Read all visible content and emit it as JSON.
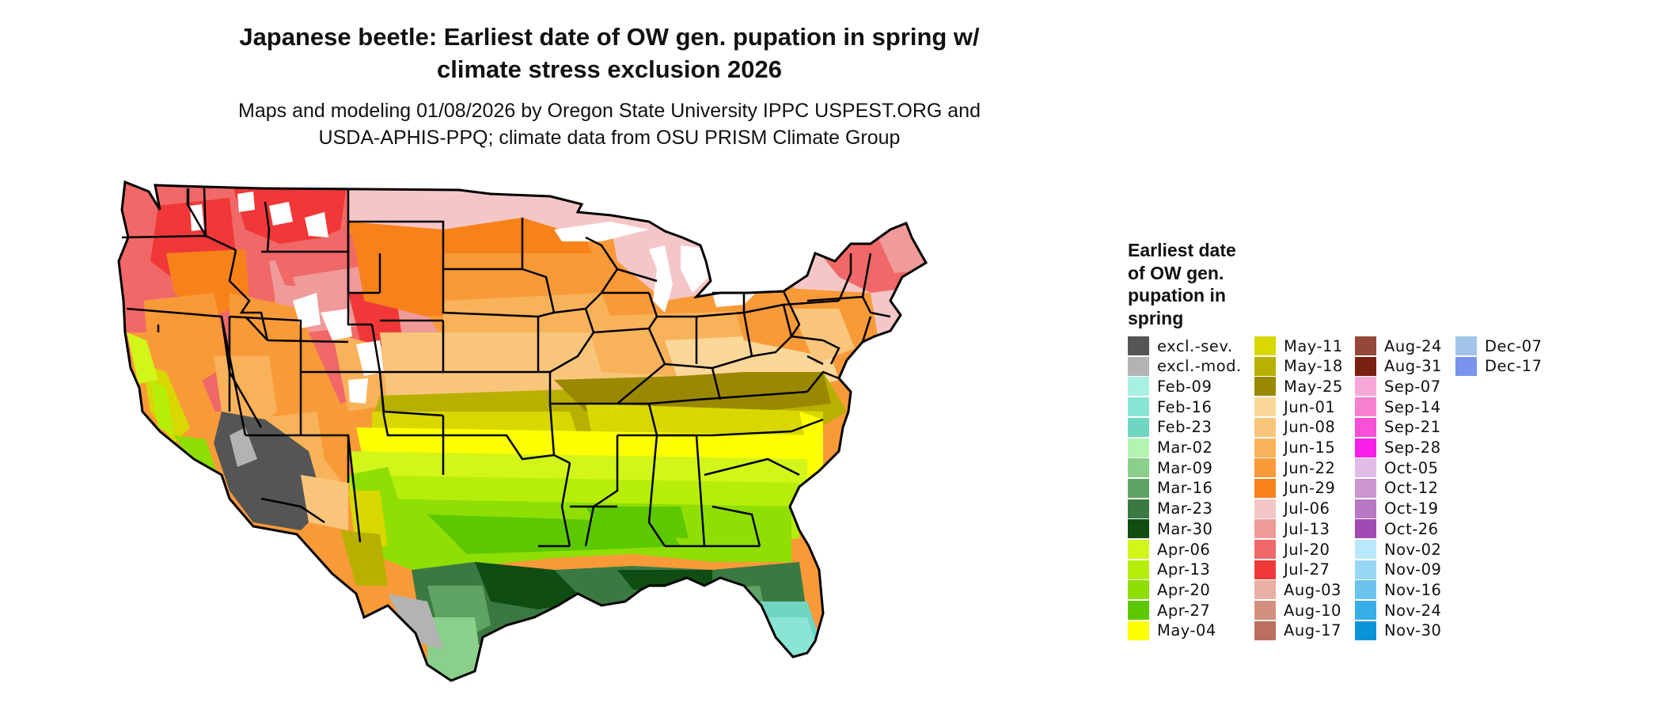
{
  "map": {
    "title_line1": "Japanese beetle: Earliest date of OW gen. pupation in spring w/",
    "title_line2": "climate stress exclusion 2026",
    "subtitle_line1": "Maps and modeling 01/08/2026 by Oregon State University IPPC USPEST.ORG and",
    "subtitle_line2": "USDA-APHIS-PPQ; climate data from OSU PRISM Climate Group",
    "legend_title_lines": [
      "Earliest date",
      "of OW gen.",
      "pupation in",
      "spring"
    ]
  },
  "legend": {
    "columns": [
      [
        {
          "label": "excl.-sev.",
          "color": "#555555"
        },
        {
          "label": "excl.-mod.",
          "color": "#b3b3b3"
        },
        {
          "label": "Feb-09",
          "color": "#a8f0e0"
        },
        {
          "label": "Feb-16",
          "color": "#8ae5d4"
        },
        {
          "label": "Feb-23",
          "color": "#6fd6c2"
        },
        {
          "label": "Mar-02",
          "color": "#b3f5b0"
        },
        {
          "label": "Mar-09",
          "color": "#8acf8a"
        },
        {
          "label": "Mar-16",
          "color": "#5fa464"
        },
        {
          "label": "Mar-23",
          "color": "#3a7a42"
        },
        {
          "label": "Mar-30",
          "color": "#0f4d12"
        },
        {
          "label": "Apr-06",
          "color": "#d2f51a"
        },
        {
          "label": "Apr-13",
          "color": "#b6ee0a"
        },
        {
          "label": "Apr-20",
          "color": "#8fde04"
        },
        {
          "label": "Apr-27",
          "color": "#5bc800"
        },
        {
          "label": "May-04",
          "color": "#ffff00"
        }
      ],
      [
        {
          "label": "May-11",
          "color": "#d8d800"
        },
        {
          "label": "May-18",
          "color": "#b8b000"
        },
        {
          "label": "May-25",
          "color": "#9a8800"
        },
        {
          "label": "Jun-01",
          "color": "#fbd79a"
        },
        {
          "label": "Jun-08",
          "color": "#f8c57a"
        },
        {
          "label": "Jun-15",
          "color": "#f8b25a"
        },
        {
          "label": "Jun-22",
          "color": "#f89a38"
        },
        {
          "label": "Jun-29",
          "color": "#f8821a"
        },
        {
          "label": "Jul-06",
          "color": "#f5c6c8"
        },
        {
          "label": "Jul-13",
          "color": "#f09a9a"
        },
        {
          "label": "Jul-20",
          "color": "#f06868"
        },
        {
          "label": "Jul-27",
          "color": "#f03838"
        },
        {
          "label": "Aug-03",
          "color": "#e8b0a5"
        },
        {
          "label": "Aug-10",
          "color": "#d4907f"
        },
        {
          "label": "Aug-17",
          "color": "#bb6f5e"
        }
      ],
      [
        {
          "label": "Aug-24",
          "color": "#934838"
        },
        {
          "label": "Aug-31",
          "color": "#7a2012"
        },
        {
          "label": "Sep-07",
          "color": "#f8a8d8"
        },
        {
          "label": "Sep-14",
          "color": "#f880d0"
        },
        {
          "label": "Sep-21",
          "color": "#f850d8"
        },
        {
          "label": "Sep-28",
          "color": "#f820e8"
        },
        {
          "label": "Oct-05",
          "color": "#e2bce6"
        },
        {
          "label": "Oct-12",
          "color": "#cc96d2"
        },
        {
          "label": "Oct-19",
          "color": "#b878c4"
        },
        {
          "label": "Oct-26",
          "color": "#a14ab4"
        },
        {
          "label": "Nov-02",
          "color": "#b8e8fa"
        },
        {
          "label": "Nov-09",
          "color": "#98d8f5"
        },
        {
          "label": "Nov-16",
          "color": "#6cc4ee"
        },
        {
          "label": "Nov-24",
          "color": "#38aee8"
        },
        {
          "label": "Nov-30",
          "color": "#0a94d8"
        }
      ],
      [
        {
          "label": "Dec-07",
          "color": "#a2c4e8"
        },
        {
          "label": "Dec-17",
          "color": "#7a94ee"
        }
      ]
    ]
  }
}
